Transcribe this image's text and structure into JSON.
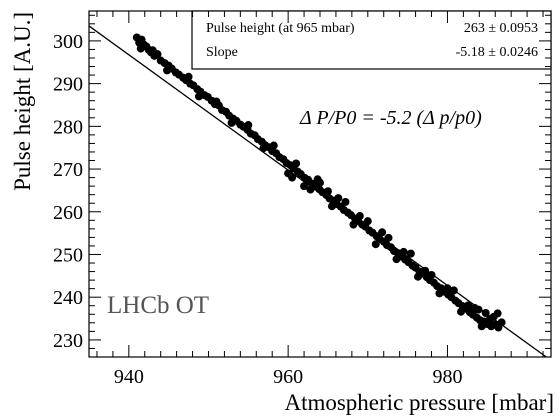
{
  "chart_data": {
    "type": "scatter",
    "xlabel": "Atmospheric pressure [mbar]",
    "ylabel": "Pulse height [A.U.]",
    "xlim": [
      935,
      993
    ],
    "ylim": [
      226,
      307
    ],
    "xticks": [
      940,
      960,
      980
    ],
    "yticks": [
      230,
      240,
      250,
      260,
      270,
      280,
      290,
      300
    ],
    "grid": false,
    "fit_line": {
      "slope": -1.35,
      "intercept_at_965": 263
    },
    "stats_box": {
      "rows": [
        {
          "label": "Pulse height (at 965 mbar)",
          "value": "263 ± 0.0953"
        },
        {
          "label": "Slope",
          "value": "-5.18 ± 0.0246"
        }
      ]
    },
    "annotation": "Δ P/P0 = -5.2 (Δ p/p0)",
    "watermark": "LHCb OT",
    "series": [
      {
        "points": [
          [
            941.0,
            300.8
          ],
          [
            941.3,
            299.6
          ],
          [
            941.6,
            300.3
          ],
          [
            941.9,
            299.1
          ],
          [
            942.2,
            298.7
          ],
          [
            941.5,
            298.2
          ],
          [
            942.5,
            297.9
          ],
          [
            942.8,
            297.3
          ],
          [
            943.2,
            296.5
          ],
          [
            943.6,
            296.9
          ],
          [
            944.0,
            295.4
          ],
          [
            944.5,
            294.8
          ],
          [
            945.0,
            294.2
          ],
          [
            945.4,
            293.5
          ],
          [
            945.9,
            292.6
          ],
          [
            946.3,
            292.1
          ],
          [
            946.8,
            291.4
          ],
          [
            947.2,
            290.8
          ],
          [
            947.7,
            290.0
          ],
          [
            948.1,
            289.6
          ],
          [
            948.6,
            288.7
          ],
          [
            949.0,
            288.1
          ],
          [
            949.5,
            287.3
          ],
          [
            949.9,
            286.9
          ],
          [
            950.4,
            286.0
          ],
          [
            950.8,
            285.2
          ],
          [
            951.3,
            284.9
          ],
          [
            951.7,
            283.8
          ],
          [
            952.2,
            283.4
          ],
          [
            952.6,
            282.5
          ],
          [
            953.1,
            281.8
          ],
          [
            953.5,
            281.3
          ],
          [
            954.0,
            280.4
          ],
          [
            954.4,
            279.9
          ],
          [
            954.9,
            279.2
          ],
          [
            955.3,
            278.3
          ],
          [
            955.8,
            277.9
          ],
          [
            956.2,
            277.0
          ],
          [
            956.7,
            276.4
          ],
          [
            957.1,
            275.6
          ],
          [
            957.6,
            275.1
          ],
          [
            958.0,
            274.2
          ],
          [
            958.5,
            273.7
          ],
          [
            958.9,
            272.8
          ],
          [
            959.4,
            272.3
          ],
          [
            959.8,
            271.4
          ],
          [
            960.3,
            270.9
          ],
          [
            960.7,
            270.1
          ],
          [
            961.2,
            269.4
          ],
          [
            961.6,
            268.8
          ],
          [
            962.1,
            267.9
          ],
          [
            962.5,
            267.5
          ],
          [
            963.0,
            266.6
          ],
          [
            963.4,
            266.0
          ],
          [
            963.9,
            265.3
          ],
          [
            964.3,
            264.6
          ],
          [
            964.8,
            263.9
          ],
          [
            965.2,
            263.1
          ],
          [
            965.7,
            262.6
          ],
          [
            966.1,
            261.8
          ],
          [
            966.6,
            261.2
          ],
          [
            967.0,
            260.4
          ],
          [
            967.5,
            259.8
          ],
          [
            967.9,
            259.2
          ],
          [
            968.4,
            258.4
          ],
          [
            968.8,
            257.8
          ],
          [
            969.3,
            257.0
          ],
          [
            969.7,
            256.5
          ],
          [
            970.2,
            255.6
          ],
          [
            970.6,
            255.1
          ],
          [
            971.1,
            254.3
          ],
          [
            971.5,
            253.6
          ],
          [
            972.0,
            253.0
          ],
          [
            972.4,
            252.2
          ],
          [
            972.9,
            251.7
          ],
          [
            973.3,
            250.8
          ],
          [
            973.8,
            250.3
          ],
          [
            974.2,
            249.5
          ],
          [
            974.7,
            248.8
          ],
          [
            975.1,
            248.2
          ],
          [
            975.6,
            247.4
          ],
          [
            976.0,
            246.9
          ],
          [
            976.5,
            246.0
          ],
          [
            976.9,
            245.5
          ],
          [
            977.4,
            244.7
          ],
          [
            977.8,
            244.0
          ],
          [
            978.3,
            243.4
          ],
          [
            978.7,
            242.6
          ],
          [
            979.2,
            242.1
          ],
          [
            979.6,
            241.3
          ],
          [
            980.1,
            240.6
          ],
          [
            980.5,
            240.0
          ],
          [
            981.0,
            239.2
          ],
          [
            981.4,
            238.6
          ],
          [
            981.9,
            237.9
          ],
          [
            982.3,
            237.3
          ],
          [
            982.8,
            236.5
          ],
          [
            983.2,
            235.9
          ],
          [
            983.7,
            235.2
          ],
          [
            984.1,
            234.6
          ],
          [
            984.6,
            234.3
          ],
          [
            985.0,
            233.7
          ],
          [
            985.5,
            233.2
          ],
          [
            986.0,
            233.6
          ],
          [
            986.4,
            232.9
          ],
          [
            986.8,
            234.1
          ],
          [
            985.8,
            235.4
          ],
          [
            984.8,
            236.3
          ],
          [
            983.9,
            237.1
          ],
          [
            986.3,
            236.2
          ],
          [
            943.0,
            297.8
          ],
          [
            947.5,
            291.6
          ],
          [
            951.0,
            285.8
          ],
          [
            955.0,
            280.3
          ],
          [
            958.2,
            275.5
          ],
          [
            961.0,
            271.3
          ],
          [
            963.7,
            267.6
          ],
          [
            966.3,
            263.2
          ],
          [
            969.0,
            259.0
          ],
          [
            971.8,
            255.2
          ],
          [
            974.5,
            250.6
          ],
          [
            977.2,
            246.2
          ],
          [
            980.0,
            242.1
          ],
          [
            982.6,
            238.1
          ],
          [
            944.8,
            293.1
          ],
          [
            948.8,
            287.0
          ],
          [
            952.9,
            280.8
          ],
          [
            956.9,
            274.9
          ],
          [
            960.0,
            269.0
          ],
          [
            962.8,
            265.2
          ],
          [
            965.5,
            261.3
          ],
          [
            968.2,
            257.0
          ],
          [
            971.0,
            252.4
          ],
          [
            973.6,
            248.9
          ],
          [
            976.3,
            244.8
          ],
          [
            979.0,
            240.9
          ],
          [
            981.7,
            236.6
          ],
          [
            984.3,
            233.2
          ],
          [
            960.5,
            268.0
          ],
          [
            962.0,
            266.0
          ],
          [
            964.0,
            266.8
          ],
          [
            965.0,
            264.8
          ],
          [
            967.2,
            262.3
          ],
          [
            970.0,
            257.8
          ],
          [
            972.6,
            253.9
          ],
          [
            975.4,
            250.2
          ],
          [
            978.0,
            245.2
          ],
          [
            980.8,
            241.6
          ],
          [
            983.4,
            237.5
          ],
          [
            985.3,
            234.8
          ]
        ]
      }
    ]
  }
}
